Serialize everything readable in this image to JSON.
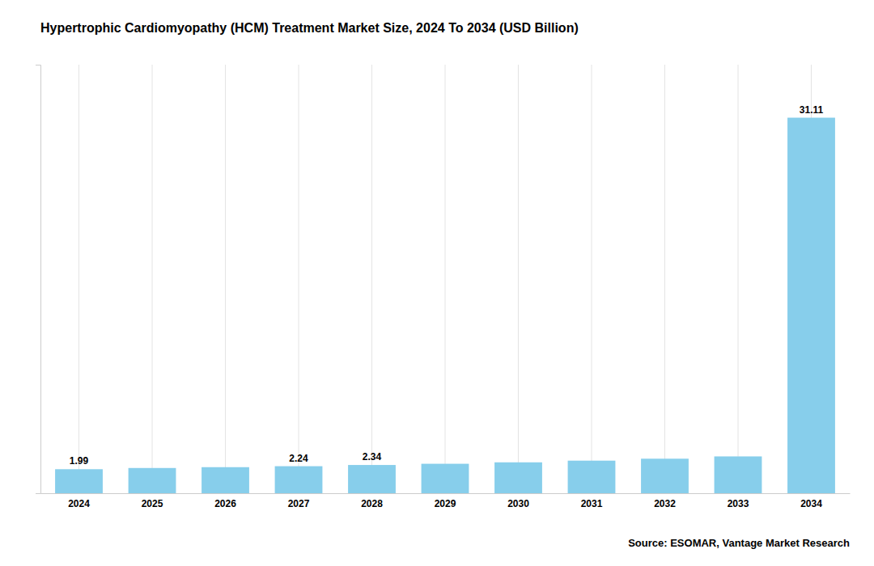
{
  "chart_data": {
    "type": "bar",
    "title": "Hypertrophic Cardiomyopathy (HCM) Treatment Market Size, 2024 To 2034 (USD Billion)",
    "categories": [
      "2024",
      "2025",
      "2026",
      "2027",
      "2028",
      "2029",
      "2030",
      "2031",
      "2032",
      "2033",
      "2034"
    ],
    "values": [
      1.99,
      2.09,
      2.16,
      2.24,
      2.34,
      2.44,
      2.56,
      2.7,
      2.86,
      3.05,
      31.11
    ],
    "value_labels": [
      "1.99",
      null,
      null,
      "2.24",
      "2.34",
      null,
      null,
      null,
      null,
      null,
      "31.11"
    ],
    "color": "#87CEEB",
    "ylim": [
      0,
      35.5
    ],
    "yticks": [],
    "grid": true,
    "tick_labels": "x",
    "annotations": [
      "Source: ESOMAR, Vantage Market Research"
    ]
  }
}
